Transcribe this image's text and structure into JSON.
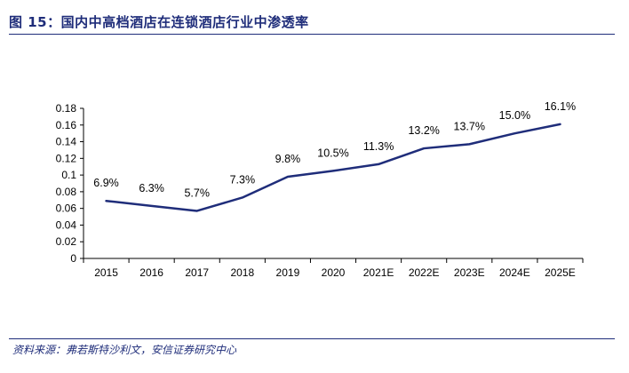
{
  "header": {
    "title": "图 15：国内中高档酒店在连锁酒店行业中渗透率"
  },
  "footer": {
    "source": "资料来源：弗若斯特沙利文，安信证券研究中心"
  },
  "colors": {
    "accent": "#1f2d7a",
    "series": "#1f2d7a",
    "axis": "#000000"
  },
  "chart_data": {
    "type": "line",
    "title": "",
    "xlabel": "",
    "ylabel": "",
    "categories": [
      "2015",
      "2016",
      "2017",
      "2018",
      "2019",
      "2020",
      "2021E",
      "2022E",
      "2023E",
      "2024E",
      "2025E"
    ],
    "series": [
      {
        "values": [
          0.069,
          0.063,
          0.057,
          0.073,
          0.098,
          0.105,
          0.113,
          0.132,
          0.137,
          0.15,
          0.161
        ],
        "labels": [
          "6.9%",
          "6.3%",
          "5.7%",
          "7.3%",
          "9.8%",
          "10.5%",
          "11.3%",
          "13.2%",
          "13.7%",
          "15.0%",
          "16.1%"
        ]
      }
    ],
    "ylim": [
      0,
      0.18
    ],
    "yticks": [
      "0",
      "0.02",
      "0.04",
      "0.06",
      "0.08",
      "0.1",
      "0.12",
      "0.14",
      "0.16",
      "0.18"
    ],
    "grid": false,
    "legend": "none"
  }
}
